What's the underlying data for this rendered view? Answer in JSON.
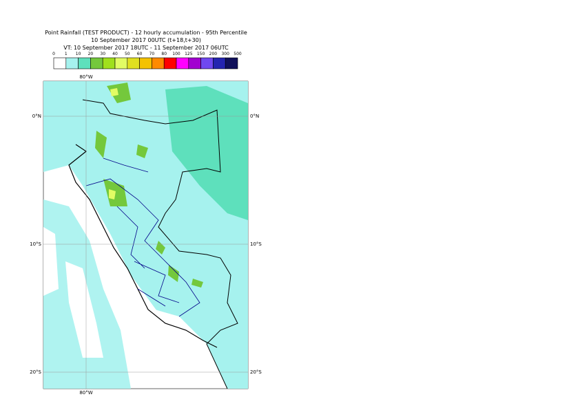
{
  "header": {
    "title_lines": [
      "Point Rainfall (TEST PRODUCT) - 12 hourly accumulation - 95th Percentile",
      "10 September 2017 00UTC (t+18,t+30)",
      "VT: 10 September 2017 18UTC - 11 September 2017 06UTC"
    ]
  },
  "legend": {
    "ticks": [
      "0",
      "1",
      "10",
      "20",
      "30",
      "40",
      "50",
      "60",
      "70",
      "80",
      "100",
      "125",
      "150",
      "200",
      "300",
      "500"
    ],
    "colors": [
      "#ffffff",
      "#a6f2ee",
      "#5ee0bc",
      "#74c83c",
      "#a0e01c",
      "#e2fc64",
      "#e0e020",
      "#f4c200",
      "#ff8a00",
      "#ff0000",
      "#ff00ff",
      "#a200d0",
      "#7048f0",
      "#2424b0",
      "#10105a"
    ]
  },
  "map": {
    "longitude_label": "80°W",
    "latitude_labels": [
      "0°N",
      "10°S",
      "20°S"
    ]
  }
}
